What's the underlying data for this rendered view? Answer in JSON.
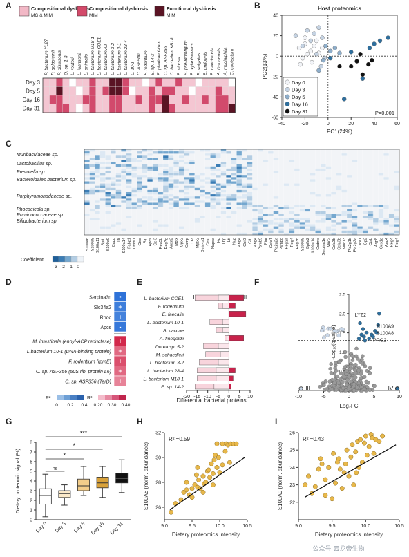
{
  "panel_labels": [
    "A",
    "B",
    "C",
    "D",
    "E",
    "F",
    "G",
    "H",
    "I"
  ],
  "panel_a": {
    "legend": [
      {
        "title": "Compositional dysbiosis",
        "subtitle": "MG & MIM",
        "color": "#f2b8c6"
      },
      {
        "title": "Compositional dysbiosis",
        "subtitle": "MIM",
        "color": "#d34a6a"
      },
      {
        "title": "Functional dysbiosis",
        "subtitle": "MIM",
        "color": "#5a1424"
      }
    ],
    "rows": [
      "Day 3",
      "Day 5",
      "Day 16",
      "Day 31"
    ],
    "columns": [
      "P. bacterium YL27",
      "P. goldsteinii",
      "P. distasonis",
      "O. sp. 1-3",
      "L. reuteri",
      "L. johnsonii",
      "L. animalis",
      "L. bacterium M18-1",
      "L. bacterium COE1",
      "L. bacterium A2",
      "L. bacterium 3-2",
      "L. bacterium 3-1",
      "L. bacterium 28-4",
      "L. 10-1",
      "C. ASF500",
      "F. rodentium",
      "E. sp. 14-2",
      "E. plexicaudatum",
      "C. sp. ASF356",
      "C. bacterium KB18",
      "B. vinosa",
      "B. pseudolongum",
      "B. xylanisolvens",
      "B. vulgatus",
      "B. uniformis",
      "B. caecimuris",
      "A. timonensis",
      "A. muciniphila",
      "C. cooleatum"
    ],
    "matrix": [
      [
        1,
        1,
        2,
        1,
        0,
        1,
        1,
        2,
        1,
        1,
        3,
        3,
        2,
        1,
        1,
        0,
        1,
        2,
        1,
        1,
        2,
        1,
        1,
        0,
        1,
        1,
        1,
        1,
        0
      ],
      [
        1,
        1,
        3,
        1,
        1,
        0,
        1,
        2,
        1,
        2,
        3,
        3,
        2,
        0,
        1,
        1,
        2,
        1,
        2,
        2,
        1,
        1,
        0,
        1,
        1,
        1,
        2,
        1,
        1
      ],
      [
        1,
        2,
        2,
        1,
        1,
        1,
        2,
        2,
        1,
        1,
        2,
        2,
        1,
        1,
        2,
        1,
        2,
        2,
        3,
        1,
        1,
        2,
        1,
        1,
        2,
        1,
        2,
        2,
        1
      ],
      [
        1,
        1,
        2,
        2,
        1,
        0,
        1,
        2,
        1,
        1,
        2,
        2,
        1,
        1,
        1,
        1,
        2,
        1,
        3,
        2,
        1,
        1,
        1,
        1,
        1,
        1,
        2,
        2,
        3
      ]
    ]
  },
  "panel_b": {
    "chart_data": {
      "type": "scatter",
      "title": "Host proteomics",
      "xlabel": "PC1(24%)",
      "ylabel": "PC2(13%)",
      "xlim": [
        -40,
        60
      ],
      "ylim": [
        -60,
        40
      ],
      "xticks": [
        -40,
        -20,
        0,
        20,
        40,
        60
      ],
      "yticks": [
        -60,
        -40,
        -20,
        0,
        20,
        40
      ],
      "series": [
        {
          "name": "Day 0",
          "color": "#f2f4f8",
          "points": [
            [
              -25,
              8
            ],
            [
              -20,
              12
            ],
            [
              -18,
              2
            ],
            [
              -22,
              -2
            ],
            [
              -15,
              5
            ],
            [
              -12,
              10
            ],
            [
              -10,
              15
            ],
            [
              -20,
              18
            ],
            [
              -8,
              3
            ],
            [
              -14,
              -6
            ],
            [
              -24,
              -8
            ],
            [
              -5,
              8
            ]
          ]
        },
        {
          "name": "Day 3",
          "color": "#c5d3e3",
          "points": [
            [
              -18,
              25
            ],
            [
              -12,
              22
            ],
            [
              -8,
              28
            ],
            [
              -15,
              15
            ],
            [
              -5,
              18
            ],
            [
              -22,
              10
            ],
            [
              -10,
              2
            ],
            [
              -3,
              -2
            ],
            [
              -28,
              20
            ],
            [
              -6,
              -10
            ]
          ]
        },
        {
          "name": "Day 5",
          "color": "#8eaecb",
          "points": [
            [
              -2,
              10
            ],
            [
              2,
              5
            ],
            [
              6,
              8
            ],
            [
              -4,
              -4
            ],
            [
              10,
              3
            ],
            [
              -8,
              -14
            ]
          ]
        },
        {
          "name": "Day 16",
          "color": "#2e6f9e",
          "points": [
            [
              40,
              12
            ],
            [
              45,
              15
            ],
            [
              52,
              18
            ],
            [
              36,
              8
            ],
            [
              30,
              -22
            ],
            [
              14,
              -42
            ],
            [
              2,
              -2
            ],
            [
              20,
              4
            ]
          ]
        },
        {
          "name": "Day 31",
          "color": "#111111",
          "points": [
            [
              20,
              -10
            ],
            [
              25,
              -5
            ],
            [
              30,
              -18
            ],
            [
              35,
              -8
            ],
            [
              38,
              -4
            ],
            [
              28,
              2
            ],
            [
              10,
              -10
            ]
          ]
        }
      ],
      "annotation": "P=0.001"
    }
  },
  "panel_c": {
    "taxa": [
      "Muribaculaceae sp.",
      "Lactobacillus sp.",
      "Prevotella sp.",
      "Bacteroidales bacterium sp.",
      "Porphyromonadaceae sp.",
      "Phocaeicola sp.",
      "Ruminococcaceae sp.",
      "Bifidobacterium sp."
    ],
    "proteins": [
      "S100a6",
      "S100a8",
      "S100a11",
      "Sptb",
      "S100a9",
      "Capg",
      "Ttr",
      "S100a14",
      "Fabp1",
      "Dmbt1",
      "Ctsd",
      "Slp",
      "Apcs",
      "Cel3",
      "Reg3b",
      "Reg3g",
      "Anxa2",
      "Mptx",
      "Gpx2",
      "Camp",
      "Ovl",
      "Mptx2",
      "Defa-rs1",
      "Ctsd",
      "Napsa",
      "Hp",
      "Lbp",
      "Ltf",
      "Nup",
      "Ang4",
      "Chil3",
      "Cfh",
      "Ang4",
      "Psmb9",
      "Pigr",
      "Gsta1",
      "Pla2g2a",
      "Psmb8",
      "Reg3a",
      "Reg4",
      "Reg3b",
      "S100a9",
      "Bpifa2",
      "S100a14",
      "Gsdmc",
      "Serpina1e",
      "Muc2",
      "Cela3b",
      "Cela3b",
      "Muc13",
      "Pla2g1b",
      "Pla2g2a",
      "Clca1",
      "Gp2",
      "Ctsb",
      "Aqp8",
      "Ces1g",
      "Ang4",
      "Reg4",
      "Reg4"
    ],
    "colorbar_label": "Coefficient",
    "colorbar_ticks": [
      "-3",
      "-2",
      "-1",
      "0"
    ]
  },
  "panel_d": {
    "rows": [
      {
        "label": "Serpina3n",
        "sign": "-",
        "group": "host",
        "r2": 0.38
      },
      {
        "label": "Slc34a2",
        "sign": "+",
        "group": "host",
        "r2": 0.32
      },
      {
        "label": "Rhoc",
        "sign": "+",
        "group": "host",
        "r2": 0.3
      },
      {
        "label": "Apcs",
        "sign": "-",
        "group": "host",
        "r2": 0.35
      },
      {
        "label": "M. intestinale (enoyl-ACP reductase)",
        "sign": "+",
        "group": "bact",
        "r2": 0.4
      },
      {
        "label": "L.bacterium 10-1 (DNA-binding protein)",
        "sign": "+",
        "group": "bact",
        "r2": 0.3
      },
      {
        "label": "F. rodentium (rpmE)",
        "sign": "+",
        "group": "bact",
        "r2": 0.34
      },
      {
        "label": "C. sp. ASF356 (50S rib. protein L6)",
        "sign": "+",
        "group": "bact",
        "r2": 0.3
      },
      {
        "label": "C. sp. ASF356 (TerD)",
        "sign": "+",
        "group": "bact",
        "r2": 0.26
      }
    ],
    "cbar1": {
      "label": "R²",
      "ticks": [
        "0",
        "0.2",
        "0.4"
      ]
    },
    "cbar2": {
      "label": "R²",
      "ticks": [
        "0.20",
        "0.30",
        "0.40"
      ]
    }
  },
  "panel_e": {
    "chart_data": {
      "type": "bar",
      "xlabel": "Differential bacterial proteins",
      "xlim": [
        -20,
        10
      ],
      "xticks": [
        -20,
        -15,
        -10,
        -5,
        0,
        5,
        10
      ],
      "section_labels": [
        "I",
        "II"
      ],
      "categories": [
        "L. bacterium COE1",
        "F. rodentium",
        "E. faecalis",
        "L. bacterium 10-1",
        "A. caccae",
        "A. finegoldii",
        "Dorea sp. 5-2",
        "M. schaedleri",
        "L. bacterium 3-2",
        "L. bacterium 28-4",
        "L. bacterium M18-1",
        "E. sp. 14-2"
      ],
      "series": [
        {
          "name": "MG & MIM",
          "values": [
            -16,
            -5,
            0,
            -9,
            -6,
            -2,
            -12,
            -11,
            -14,
            -15,
            -15,
            -16
          ]
        },
        {
          "name": "MIM",
          "values": [
            -5,
            -3,
            0,
            -3,
            -3,
            -1,
            -5,
            -4,
            -5,
            -6,
            -6,
            -7
          ]
        },
        {
          "name": "Up",
          "values": [
            7,
            3,
            8,
            0,
            0,
            7,
            0,
            0,
            0,
            3,
            2,
            1
          ]
        }
      ]
    }
  },
  "panel_f": {
    "chart_data": {
      "type": "scatter",
      "xlabel": "Log₂FC",
      "ylabel": "-Log₁₀(q-value)",
      "xlim": [
        -10,
        10
      ],
      "ylim": [
        0,
        2.5
      ],
      "xticks": [
        -10,
        -5,
        0,
        5,
        10
      ],
      "yticks": [
        0,
        0.5,
        1.0,
        1.5,
        2.0,
        2.5
      ],
      "labels": [
        "LYZ2",
        "S100A9",
        "S100A8",
        "PRG2"
      ],
      "sections": [
        "III",
        "IV"
      ],
      "threshold": 1.3
    }
  },
  "panel_g": {
    "chart_data": {
      "type": "box",
      "ylabel": "Dietary proteomic signal (%)",
      "ylim": [
        0,
        8
      ],
      "yticks": [
        0,
        1,
        2,
        3,
        4,
        5,
        6,
        7,
        8
      ],
      "categories": [
        "Day 0",
        "Day 3",
        "Day 5",
        "Day 16",
        "Day 31"
      ],
      "boxes": [
        {
          "min": 0.3,
          "q1": 1.6,
          "median": 2.5,
          "q3": 3.2,
          "max": 4.7,
          "color": "#ffffff"
        },
        {
          "min": 1.5,
          "q1": 2.3,
          "median": 2.7,
          "q3": 3.0,
          "max": 3.6,
          "color": "#fbe9c8"
        },
        {
          "min": 2.5,
          "q1": 3.0,
          "median": 3.5,
          "q3": 4.2,
          "max": 5.5,
          "color": "#f3cd8a"
        },
        {
          "min": 2.3,
          "q1": 3.3,
          "median": 3.8,
          "q3": 4.4,
          "max": 5.5,
          "color": "#d9a23a"
        },
        {
          "min": 2.8,
          "q1": 3.8,
          "median": 4.3,
          "q3": 4.8,
          "max": 6.2,
          "color": "#111111"
        }
      ],
      "significance": [
        {
          "from": 0,
          "to": 1,
          "label": "ns"
        },
        {
          "from": 0,
          "to": 2,
          "label": "*"
        },
        {
          "from": 0,
          "to": 3,
          "label": "*"
        },
        {
          "from": 0,
          "to": 4,
          "label": "***"
        }
      ]
    }
  },
  "panel_h": {
    "chart_data": {
      "type": "scatter",
      "xlabel": "Dietary proteomics intensity",
      "ylabel": "S100A8 (norm. abundance)",
      "xlim": [
        9.0,
        10.5
      ],
      "ylim": [
        25,
        32
      ],
      "xticks": [
        9.0,
        9.5,
        10.0,
        10.5
      ],
      "yticks": [
        26,
        28,
        30,
        32
      ],
      "r2": "R² =0.59",
      "fit": [
        [
          9.1,
          25.8
        ],
        [
          10.45,
          30.0
        ]
      ],
      "points": [
        [
          9.12,
          25.6
        ],
        [
          9.2,
          26.3
        ],
        [
          9.3,
          26.6
        ],
        [
          9.35,
          27.2
        ],
        [
          9.4,
          27.4
        ],
        [
          9.45,
          27.0
        ],
        [
          9.5,
          27.5
        ],
        [
          9.55,
          27.8
        ],
        [
          9.6,
          27.6
        ],
        [
          9.62,
          28.2
        ],
        [
          9.65,
          27.5
        ],
        [
          9.7,
          28.5
        ],
        [
          9.72,
          27.9
        ],
        [
          9.75,
          28.0
        ],
        [
          9.78,
          28.9
        ],
        [
          9.8,
          29.0
        ],
        [
          9.82,
          28.4
        ],
        [
          9.85,
          29.5
        ],
        [
          9.88,
          28.7
        ],
        [
          9.9,
          29.8
        ],
        [
          9.92,
          30.2
        ],
        [
          9.95,
          29.2
        ],
        [
          9.98,
          30.0
        ],
        [
          10.0,
          28.8
        ],
        [
          10.05,
          29.4
        ],
        [
          10.1,
          30.5
        ],
        [
          10.12,
          31.1
        ],
        [
          10.15,
          31.0
        ],
        [
          10.2,
          31.1
        ],
        [
          10.25,
          31.1
        ],
        [
          10.3,
          31.1
        ],
        [
          9.6,
          29.2
        ],
        [
          9.5,
          26.8
        ],
        [
          9.7,
          27.2
        ],
        [
          9.88,
          27.8
        ],
        [
          9.4,
          28.0
        ],
        [
          10.05,
          31.1
        ],
        [
          9.95,
          31.1
        ],
        [
          9.58,
          28.6
        ],
        [
          10.18,
          29.6
        ]
      ]
    }
  },
  "panel_i": {
    "chart_data": {
      "type": "scatter",
      "xlabel": "Dietary proteomics intensity",
      "ylabel": "S100A9 (norm. abundance)",
      "xlim": [
        9.0,
        10.5
      ],
      "ylim": [
        21,
        26
      ],
      "xticks": [
        9.0,
        9.5,
        10.0,
        10.5
      ],
      "yticks": [
        22,
        23,
        24,
        25,
        26
      ],
      "r2": "R² =0.43",
      "fit": [
        [
          9.1,
          22.3
        ],
        [
          10.45,
          25.3
        ]
      ],
      "points": [
        [
          9.1,
          23.0
        ],
        [
          9.2,
          22.5
        ],
        [
          9.25,
          22.9
        ],
        [
          9.3,
          23.9
        ],
        [
          9.35,
          24.2
        ],
        [
          9.4,
          23.3
        ],
        [
          9.45,
          24.0
        ],
        [
          9.5,
          22.2
        ],
        [
          9.52,
          24.8
        ],
        [
          9.55,
          23.1
        ],
        [
          9.6,
          24.5
        ],
        [
          9.62,
          23.9
        ],
        [
          9.65,
          22.8
        ],
        [
          9.7,
          24.2
        ],
        [
          9.72,
          25.0
        ],
        [
          9.75,
          23.5
        ],
        [
          9.78,
          24.6
        ],
        [
          9.8,
          25.3
        ],
        [
          9.82,
          23.0
        ],
        [
          9.85,
          24.9
        ],
        [
          9.88,
          25.5
        ],
        [
          9.9,
          24.0
        ],
        [
          9.92,
          25.6
        ],
        [
          9.95,
          24.3
        ],
        [
          9.98,
          25.4
        ],
        [
          10.0,
          25.8
        ],
        [
          10.02,
          24.7
        ],
        [
          10.05,
          25.2
        ],
        [
          10.08,
          25.9
        ],
        [
          10.1,
          25.7
        ],
        [
          10.15,
          25.6
        ],
        [
          10.2,
          25.5
        ],
        [
          10.25,
          25.8
        ],
        [
          9.15,
          23.5
        ],
        [
          9.4,
          22.4
        ],
        [
          9.68,
          23.7
        ],
        [
          9.86,
          23.7
        ],
        [
          10.12,
          24.8
        ],
        [
          9.58,
          24.3
        ],
        [
          9.33,
          24.5
        ]
      ]
    }
  },
  "watermark": "公众号·云龙帝生物"
}
